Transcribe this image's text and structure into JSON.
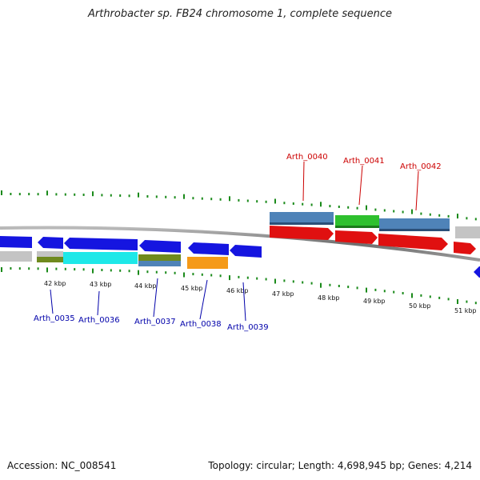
{
  "title": "Arthrobacter sp. FB24 chromosome 1, complete sequence",
  "footer": {
    "accession": "Accession: NC_008541",
    "summary": "Topology: circular; Length: 4,698,945 bp; Genes: 4,214"
  },
  "colors": {
    "backbone": "#888888",
    "tick": "#1a8a1a",
    "forward_label": "#cc0000",
    "reverse_label": "#0000aa",
    "gene_blue": "#1515e0",
    "gene_red": "#e01010",
    "cog_steelblue": "#4f83b8",
    "cog_green": "#2ec02e",
    "cog_cyan": "#1ee8e8",
    "cog_olive": "#6f8a1e",
    "cog_orange": "#f59a18",
    "cog_gray": "#c4c4c4"
  },
  "kbp_labels": [
    "42 kbp",
    "43 kbp",
    "44 kbp",
    "45 kbp",
    "46 kbp",
    "47 kbp",
    "48 kbp",
    "49 kbp",
    "50 kbp",
    "51 kbp"
  ],
  "forward_gene_labels": [
    "Arth_0040",
    "Arth_0041",
    "Arth_0042"
  ],
  "reverse_gene_labels": [
    "Arth_0035",
    "Arth_0036",
    "Arth_0037",
    "Arth_0038",
    "Arth_0039"
  ]
}
